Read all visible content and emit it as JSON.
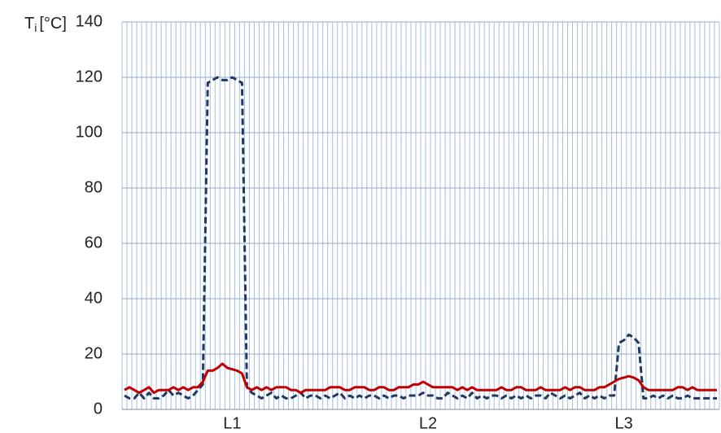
{
  "chart_data": {
    "type": "line",
    "ylabel": {
      "main": "T",
      "sub": "i",
      "unit": "[°C]"
    },
    "categories": [
      null,
      null,
      null,
      null,
      null,
      null,
      null,
      null,
      null,
      null,
      null,
      null,
      null,
      null,
      null,
      null,
      null,
      null,
      null,
      null,
      null,
      null,
      "L1",
      null,
      null,
      null,
      null,
      null,
      null,
      null,
      null,
      null,
      null,
      null,
      null,
      null,
      null,
      null,
      null,
      null,
      null,
      null,
      null,
      null,
      null,
      null,
      null,
      null,
      null,
      null,
      null,
      null,
      null,
      null,
      null,
      null,
      null,
      null,
      null,
      null,
      null,
      null,
      "L2",
      null,
      null,
      null,
      null,
      null,
      null,
      null,
      null,
      null,
      null,
      null,
      null,
      null,
      null,
      null,
      null,
      null,
      null,
      null,
      null,
      null,
      null,
      null,
      null,
      null,
      null,
      null,
      null,
      null,
      null,
      null,
      null,
      null,
      null,
      null,
      null,
      null,
      null,
      null,
      "L3",
      null,
      null,
      null,
      null,
      null,
      null,
      null,
      null,
      null,
      null,
      null,
      null,
      null,
      null,
      null,
      null,
      null,
      null,
      null
    ],
    "series": [
      {
        "color": "#1f3864",
        "line_style": "dashed",
        "values": [
          5,
          4,
          4,
          6,
          4,
          6,
          4,
          4,
          5,
          7,
          5,
          6,
          5,
          4,
          5,
          7,
          9,
          118,
          119,
          120,
          119,
          119,
          120,
          119,
          118,
          8,
          6,
          5,
          4,
          5,
          6,
          4,
          5,
          4,
          4,
          5,
          6,
          4,
          5,
          5,
          4,
          5,
          4,
          5,
          6,
          4,
          5,
          4,
          5,
          4,
          5,
          5,
          4,
          5,
          4,
          5,
          5,
          4,
          5,
          5,
          5,
          6,
          5,
          5,
          4,
          4,
          6,
          5,
          4,
          5,
          4,
          6,
          4,
          5,
          4,
          5,
          5,
          4,
          5,
          4,
          5,
          4,
          5,
          4,
          5,
          5,
          4,
          6,
          5,
          4,
          5,
          4,
          5,
          6,
          4,
          5,
          4,
          5,
          4,
          5,
          5,
          24,
          25,
          27,
          26,
          24,
          4,
          4,
          5,
          4,
          5,
          4,
          5,
          4,
          4,
          5,
          4,
          4,
          4,
          4,
          4,
          4
        ]
      },
      {
        "color": "#c00000",
        "line_style": "solid",
        "values": [
          7,
          8,
          7,
          6,
          7,
          8,
          6,
          7,
          7,
          7,
          8,
          7,
          8,
          7,
          8,
          8,
          10,
          14,
          14,
          15,
          16.5,
          15,
          14.5,
          14,
          13,
          8,
          7,
          8,
          7,
          8,
          7,
          8,
          8,
          8,
          7,
          7,
          6,
          7,
          7,
          7,
          7,
          7,
          8,
          8,
          8,
          7,
          7,
          8,
          8,
          8,
          7,
          7,
          8,
          8,
          7,
          7,
          8,
          8,
          8,
          9,
          9,
          10,
          9,
          8,
          8,
          8,
          8,
          8,
          7,
          8,
          7,
          8,
          7,
          7,
          7,
          7,
          7,
          8,
          7,
          7,
          8,
          8,
          7,
          7,
          7,
          8,
          7,
          7,
          7,
          7,
          8,
          7,
          8,
          8,
          7,
          7,
          7,
          8,
          8,
          9,
          10,
          11,
          11.5,
          12,
          11.5,
          10.5,
          8,
          7,
          7,
          7,
          7,
          7,
          7,
          8,
          8,
          7,
          8,
          7,
          7,
          7,
          7,
          7
        ]
      }
    ],
    "ylim": [
      0,
      140
    ],
    "yticks": [
      0,
      20,
      40,
      60,
      80,
      100,
      120,
      140
    ],
    "grid": true
  }
}
